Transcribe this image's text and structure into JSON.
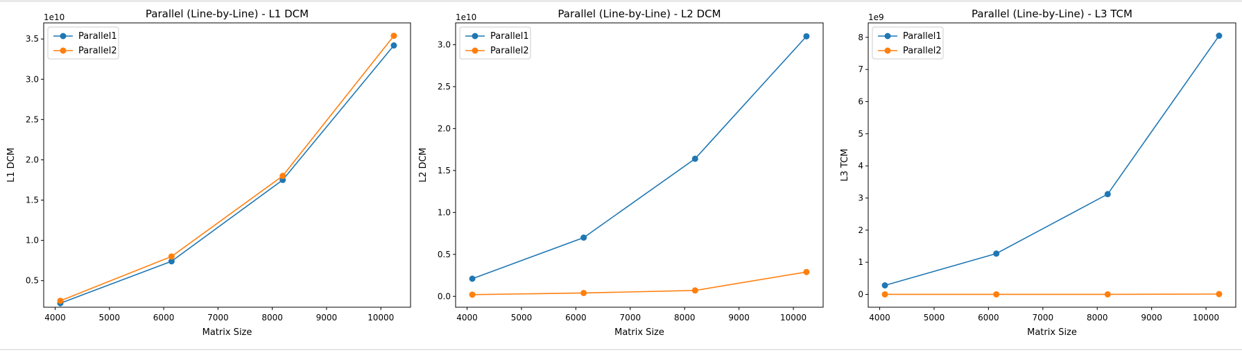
{
  "chart_data": [
    {
      "type": "line",
      "title": "Parallel (Line-by-Line) - L1 DCM",
      "xlabel": "Matrix Size",
      "ylabel": "L1 DCM",
      "offset_text": "1e10",
      "x": [
        4096,
        6144,
        8192,
        10240
      ],
      "xlim": [
        3789,
        10547
      ],
      "ylim": [
        0.17,
        3.7
      ],
      "xticks": [
        4000,
        5000,
        6000,
        7000,
        8000,
        9000,
        10000
      ],
      "xtick_labels": [
        "4000",
        "5000",
        "6000",
        "7000",
        "8000",
        "9000",
        "10000"
      ],
      "yticks": [
        0.5,
        1.0,
        1.5,
        2.0,
        2.5,
        3.0,
        3.5
      ],
      "ytick_labels": [
        "0.5",
        "1.0",
        "1.5",
        "2.0",
        "2.5",
        "3.0",
        "3.5"
      ],
      "legend": "top-left",
      "series": [
        {
          "name": "Parallel1",
          "color": "#1f77b4",
          "values": [
            0.22,
            0.74,
            1.75,
            3.42
          ]
        },
        {
          "name": "Parallel2",
          "color": "#ff7f0e",
          "values": [
            0.25,
            0.8,
            1.8,
            3.54
          ]
        }
      ]
    },
    {
      "type": "line",
      "title": "Parallel (Line-by-Line) - L2 DCM",
      "xlabel": "Matrix Size",
      "ylabel": "L2 DCM",
      "offset_text": "1e10",
      "x": [
        4096,
        6144,
        8192,
        10240
      ],
      "xlim": [
        3789,
        10547
      ],
      "ylim": [
        -0.13,
        3.26
      ],
      "xticks": [
        4000,
        5000,
        6000,
        7000,
        8000,
        9000,
        10000
      ],
      "xtick_labels": [
        "4000",
        "5000",
        "6000",
        "7000",
        "8000",
        "9000",
        "10000"
      ],
      "yticks": [
        0.0,
        0.5,
        1.0,
        1.5,
        2.0,
        2.5,
        3.0
      ],
      "ytick_labels": [
        "0.0",
        "0.5",
        "1.0",
        "1.5",
        "2.0",
        "2.5",
        "3.0"
      ],
      "legend": "top-left",
      "series": [
        {
          "name": "Parallel1",
          "color": "#1f77b4",
          "values": [
            0.21,
            0.7,
            1.64,
            3.1
          ]
        },
        {
          "name": "Parallel2",
          "color": "#ff7f0e",
          "values": [
            0.02,
            0.04,
            0.07,
            0.29
          ]
        }
      ]
    },
    {
      "type": "line",
      "title": "Parallel (Line-by-Line) - L3 TCM",
      "xlabel": "Matrix Size",
      "ylabel": "L3 TCM",
      "offset_text": "1e9",
      "x": [
        4096,
        6144,
        8192,
        10240
      ],
      "xlim": [
        3789,
        10547
      ],
      "ylim": [
        -0.4,
        8.45
      ],
      "xticks": [
        4000,
        5000,
        6000,
        7000,
        8000,
        9000,
        10000
      ],
      "xtick_labels": [
        "4000",
        "5000",
        "6000",
        "7000",
        "8000",
        "9000",
        "10000"
      ],
      "yticks": [
        0,
        1,
        2,
        3,
        4,
        5,
        6,
        7,
        8
      ],
      "ytick_labels": [
        "0",
        "1",
        "2",
        "3",
        "4",
        "5",
        "6",
        "7",
        "8"
      ],
      "legend": "top-left",
      "series": [
        {
          "name": "Parallel1",
          "color": "#1f77b4",
          "values": [
            0.28,
            1.27,
            3.12,
            8.05
          ]
        },
        {
          "name": "Parallel2",
          "color": "#ff7f0e",
          "values": [
            0.0,
            0.0,
            0.0,
            0.01
          ]
        }
      ]
    }
  ]
}
